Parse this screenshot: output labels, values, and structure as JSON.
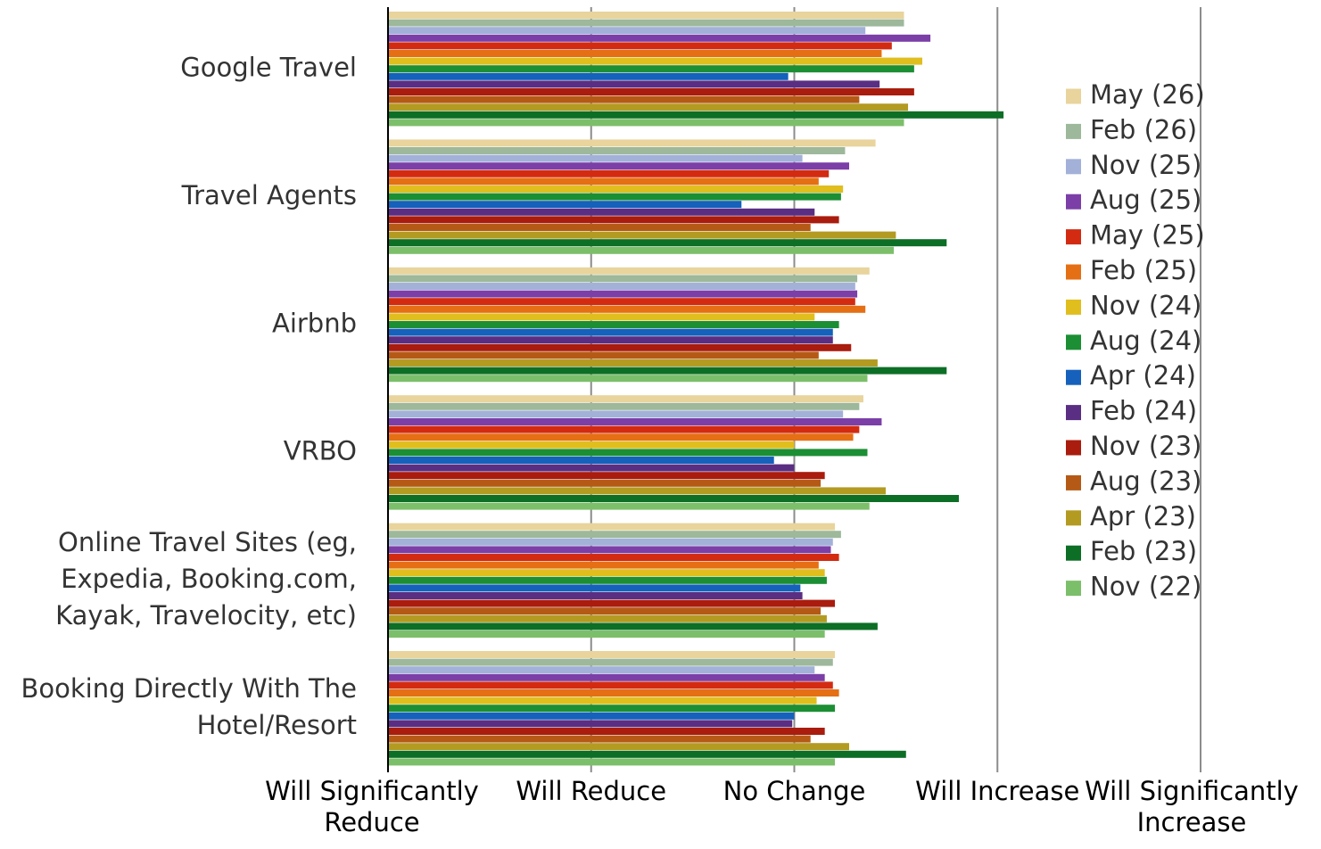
{
  "chart_data": {
    "type": "bar",
    "orientation": "horizontal",
    "title": "",
    "xlabel": "",
    "ylabel": "",
    "xlim": [
      1,
      5
    ],
    "x_ticks": [
      {
        "value": 1,
        "lines": [
          "Will Significantly",
          "Reduce"
        ]
      },
      {
        "value": 2,
        "lines": [
          "Will Reduce"
        ]
      },
      {
        "value": 3,
        "lines": [
          "No Change"
        ]
      },
      {
        "value": 4,
        "lines": [
          "Will Increase"
        ]
      },
      {
        "value": 5,
        "lines": [
          "Will Significantly",
          "Increase"
        ]
      }
    ],
    "grid": true,
    "legend_position": "right",
    "categories": [
      {
        "lines": [
          "Google Travel"
        ]
      },
      {
        "lines": [
          "Travel Agents"
        ]
      },
      {
        "lines": [
          "Airbnb"
        ]
      },
      {
        "lines": [
          "VRBO"
        ]
      },
      {
        "lines": [
          "Online Travel Sites (eg,",
          "Expedia, Booking.com,",
          "Kayak, Travelocity, etc)"
        ]
      },
      {
        "lines": [
          "Booking Directly With The",
          "Hotel/Resort"
        ]
      }
    ],
    "series": [
      {
        "name": "May (26)",
        "color": "#E8D49C",
        "values": [
          3.54,
          3.4,
          3.37,
          3.34,
          3.2,
          3.2
        ]
      },
      {
        "name": "Feb (26)",
        "color": "#9DB89B",
        "values": [
          3.54,
          3.25,
          3.31,
          3.32,
          3.23,
          3.19
        ]
      },
      {
        "name": "Nov (25)",
        "color": "#A3B1D9",
        "values": [
          3.35,
          3.04,
          3.3,
          3.24,
          3.19,
          3.1
        ]
      },
      {
        "name": "Aug (25)",
        "color": "#7B3FA7",
        "values": [
          3.67,
          3.27,
          3.31,
          3.43,
          3.18,
          3.15
        ]
      },
      {
        "name": "May (25)",
        "color": "#D22B12",
        "values": [
          3.48,
          3.17,
          3.3,
          3.32,
          3.22,
          3.19
        ]
      },
      {
        "name": "Feb (25)",
        "color": "#E56F14",
        "values": [
          3.43,
          3.12,
          3.35,
          3.29,
          3.12,
          3.22
        ]
      },
      {
        "name": "Nov (24)",
        "color": "#E0BE1E",
        "values": [
          3.63,
          3.24,
          3.1,
          3.0,
          3.15,
          3.11
        ]
      },
      {
        "name": "Aug (24)",
        "color": "#1C8E34",
        "values": [
          3.59,
          3.23,
          3.22,
          3.36,
          3.16,
          3.2
        ]
      },
      {
        "name": "Apr (24)",
        "color": "#1561BB",
        "values": [
          2.97,
          2.74,
          3.19,
          2.9,
          3.03,
          3.0
        ]
      },
      {
        "name": "Feb (24)",
        "color": "#5A2E82",
        "values": [
          3.42,
          3.1,
          3.19,
          3.0,
          3.04,
          2.99
        ]
      },
      {
        "name": "Nov (23)",
        "color": "#A91C0E",
        "values": [
          3.59,
          3.22,
          3.28,
          3.15,
          3.2,
          3.15
        ]
      },
      {
        "name": "Aug (23)",
        "color": "#B55A16",
        "values": [
          3.32,
          3.08,
          3.12,
          3.13,
          3.13,
          3.08
        ]
      },
      {
        "name": "Apr (23)",
        "color": "#B39B22",
        "values": [
          3.56,
          3.5,
          3.41,
          3.45,
          3.16,
          3.27
        ]
      },
      {
        "name": "Feb (23)",
        "color": "#0D6E26",
        "values": [
          4.03,
          3.75,
          3.75,
          3.81,
          3.41,
          3.55
        ]
      },
      {
        "name": "Nov (22)",
        "color": "#7CBF6A",
        "values": [
          3.54,
          3.49,
          3.36,
          3.37,
          3.15,
          3.2
        ]
      }
    ]
  }
}
